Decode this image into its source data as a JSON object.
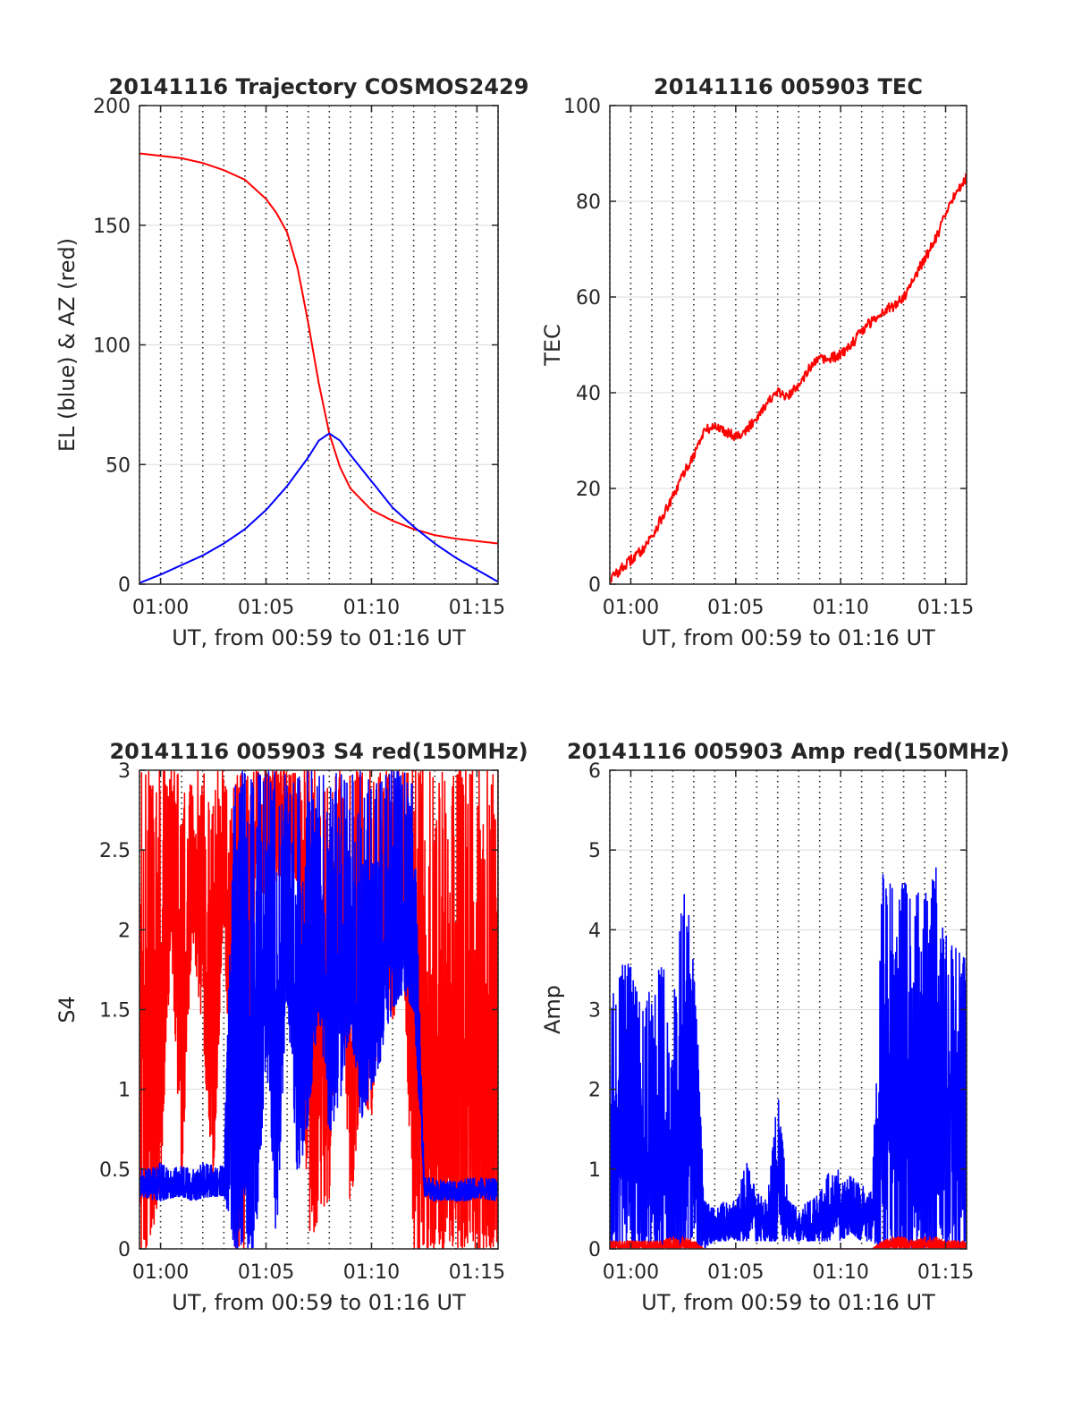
{
  "figure": {
    "background": "#ffffff",
    "colors": {
      "red": "#ff0000",
      "blue": "#0000ff",
      "axes": "#262626",
      "grid": "#262626"
    }
  },
  "chart_data": [
    {
      "type": "line",
      "title": "20141116 Trajectory COSMOS2429",
      "xlabel": "UT, from 00:59 to 01:16 UT",
      "ylabel": "EL (blue) & AZ (red)",
      "xlim": [
        "00:59",
        "01:16"
      ],
      "ylim": [
        0,
        200
      ],
      "xticks": [
        "01:00",
        "01:05",
        "01:10",
        "01:15"
      ],
      "yticks": [
        "0",
        "50",
        "100",
        "150",
        "200"
      ],
      "grid": "dotted vertical lines every 1 min, light horizontal lines",
      "series": [
        {
          "color": "#ff0000",
          "x": [
            "00:59",
            "01:00",
            "01:01",
            "01:02",
            "01:03",
            "01:04",
            "01:05",
            "01:05:30",
            "01:06",
            "01:06:30",
            "01:07",
            "01:07:30",
            "01:08",
            "01:08:30",
            "01:09",
            "01:10",
            "01:11",
            "01:12",
            "01:13",
            "01:14",
            "01:15",
            "01:16"
          ],
          "values": [
            180,
            179,
            178,
            176,
            173,
            169,
            161,
            155,
            147,
            132,
            109,
            84,
            63,
            49,
            40,
            31,
            26.5,
            23,
            20.5,
            19,
            18,
            17
          ]
        },
        {
          "color": "#0000ff",
          "x": [
            "00:59",
            "01:00",
            "01:01",
            "01:02",
            "01:03",
            "01:04",
            "01:05",
            "01:06",
            "01:07",
            "01:07:30",
            "01:08",
            "01:08:30",
            "01:09",
            "01:10",
            "01:11",
            "01:12",
            "01:13",
            "01:14",
            "01:15",
            "01:16"
          ],
          "values": [
            0.5,
            4,
            8,
            12,
            17,
            23,
            31,
            41,
            53,
            60,
            63,
            60,
            54,
            43,
            32,
            24,
            17,
            11,
            6,
            1
          ]
        }
      ]
    },
    {
      "type": "line",
      "title": "20141116 005903 TEC",
      "xlabel": "UT, from 00:59 to 01:16 UT",
      "ylabel": "TEC",
      "xlim": [
        "00:59",
        "01:16"
      ],
      "ylim": [
        0,
        100
      ],
      "xticks": [
        "01:00",
        "01:05",
        "01:10",
        "01:15"
      ],
      "yticks": [
        "0",
        "20",
        "40",
        "60",
        "80",
        "100"
      ],
      "grid": "dotted vertical lines every 1 min, light horizontal lines",
      "series": [
        {
          "color": "#ff0000",
          "x": [
            "00:59",
            "00:59:30",
            "01:00",
            "01:00:30",
            "01:01",
            "01:01:30",
            "01:02",
            "01:02:30",
            "01:03",
            "01:03:30",
            "01:04",
            "01:04:30",
            "01:05",
            "01:05:30",
            "01:06",
            "01:06:30",
            "01:07",
            "01:07:30",
            "01:08",
            "01:08:30",
            "01:09",
            "01:09:30",
            "01:10",
            "01:10:30",
            "01:11",
            "01:11:30",
            "01:12",
            "01:12:30",
            "01:13",
            "01:13:30",
            "01:14",
            "01:14:30",
            "01:15",
            "01:15:30",
            "01:16"
          ],
          "values": [
            1,
            3,
            5,
            7,
            10,
            14,
            18,
            23,
            27,
            32,
            33,
            32,
            31,
            32,
            35,
            38,
            40,
            39,
            42,
            45,
            47,
            47,
            48,
            50,
            53,
            55,
            57,
            58,
            60,
            64,
            68,
            72,
            77,
            82,
            85
          ]
        }
      ]
    },
    {
      "type": "line",
      "title": "20141116 005903 S4 red(150MHz)",
      "xlabel": "UT, from 00:59 to 01:16 UT",
      "ylabel": "S4",
      "xlim": [
        "00:59",
        "01:16"
      ],
      "ylim": [
        0,
        3
      ],
      "xticks": [
        "01:00",
        "01:05",
        "01:10",
        "01:15"
      ],
      "yticks": [
        "0",
        "0.5",
        "1",
        "1.5",
        "2",
        "2.5",
        "3"
      ],
      "grid": "dotted vertical lines every 1 min, light horizontal lines",
      "series": [
        {
          "color": "#ff0000",
          "description_free_values": true,
          "x": [
            "00:59",
            "00:59:30",
            "01:00",
            "01:00:30",
            "01:01",
            "01:01:30",
            "01:02",
            "01:02:30",
            "01:03",
            "01:03:30",
            "01:04",
            "01:04:30",
            "01:05",
            "01:05:30",
            "01:06",
            "01:06:30",
            "01:07",
            "01:07:30",
            "01:08",
            "01:08:30",
            "01:09",
            "01:09:30",
            "01:10",
            "01:10:30",
            "01:11",
            "01:11:30",
            "01:12",
            "01:12:30",
            "01:13",
            "01:13:30",
            "01:14",
            "01:14:30",
            "01:15",
            "01:15:30",
            "01:16"
          ],
          "min": [
            0,
            0,
            0.4,
            1.9,
            0.4,
            2.0,
            1.3,
            0.4,
            2.1,
            0,
            0,
            2.3,
            2.2,
            2.3,
            2.4,
            2.3,
            0,
            0.2,
            0.3,
            1.8,
            0.2,
            1.0,
            0.8,
            1.7,
            1.4,
            1.8,
            0,
            0,
            0,
            0,
            0,
            0,
            0,
            0,
            0
          ],
          "max": [
            3,
            3,
            3,
            3,
            3,
            3,
            3,
            3,
            3,
            3,
            3,
            3,
            3,
            3,
            3,
            3,
            3,
            3,
            3,
            3,
            3,
            3,
            3,
            3,
            3,
            3,
            3,
            3,
            3,
            3,
            3,
            3,
            3,
            3,
            3
          ]
        },
        {
          "color": "#0000ff",
          "x": [
            "00:59",
            "00:59:30",
            "01:00",
            "01:00:30",
            "01:01",
            "01:01:30",
            "01:02",
            "01:02:30",
            "01:03",
            "01:03:30",
            "01:04",
            "01:04:30",
            "01:05",
            "01:05:30",
            "01:06",
            "01:06:30",
            "01:07",
            "01:07:30",
            "01:08",
            "01:08:30",
            "01:09",
            "01:09:30",
            "01:10",
            "01:10:30",
            "01:11",
            "01:11:30",
            "01:12",
            "01:12:30",
            "01:13",
            "01:13:30",
            "01:14",
            "01:14:30",
            "01:15",
            "01:15:30",
            "01:16"
          ],
          "min": [
            0.33,
            0.31,
            0.3,
            0.32,
            0.33,
            0.3,
            0.32,
            0.33,
            0.33,
            0,
            0,
            0,
            1.2,
            0,
            1.6,
            0.4,
            0.8,
            1.5,
            0.7,
            0.9,
            1.4,
            0.8,
            1.0,
            1.2,
            1.5,
            1.6,
            1.5,
            0.33,
            0.3,
            0.31,
            0.3,
            0.3,
            0.32,
            0.31,
            0.3
          ],
          "max": [
            0.52,
            0.5,
            0.54,
            0.5,
            0.52,
            0.5,
            0.54,
            0.52,
            0.52,
            3,
            3,
            3,
            3,
            3,
            3,
            3,
            3,
            3,
            3,
            3,
            3,
            3,
            3,
            3,
            3,
            3,
            2.9,
            0.45,
            0.44,
            0.43,
            0.42,
            0.44,
            0.45,
            0.44,
            0.44
          ]
        }
      ]
    },
    {
      "type": "line",
      "title": "20141116 005903 Amp red(150MHz)",
      "xlabel": "UT, from 00:59 to 01:16 UT",
      "ylabel": "Amp",
      "xlim": [
        "00:59",
        "01:16"
      ],
      "ylim": [
        0,
        6
      ],
      "xticks": [
        "01:00",
        "01:05",
        "01:10",
        "01:15"
      ],
      "yticks": [
        "0",
        "1",
        "2",
        "3",
        "4",
        "5",
        "6"
      ],
      "grid": "dotted vertical lines every 1 min, light horizontal lines",
      "series": [
        {
          "color": "#0000ff",
          "x": [
            "00:59",
            "00:59:30",
            "01:00",
            "01:00:30",
            "01:01",
            "01:01:30",
            "01:02",
            "01:02:30",
            "01:03",
            "01:03:30",
            "01:04",
            "01:04:30",
            "01:05",
            "01:05:30",
            "01:06",
            "01:06:30",
            "01:07",
            "01:07:30",
            "01:08",
            "01:08:30",
            "01:09",
            "01:09:30",
            "01:10",
            "01:10:30",
            "01:11",
            "01:11:30",
            "01:12",
            "01:12:30",
            "01:13",
            "01:13:30",
            "01:14",
            "01:14:30",
            "01:15",
            "01:15:30",
            "01:16"
          ],
          "min": [
            0,
            0,
            0,
            0,
            0,
            0,
            0,
            0,
            0,
            0,
            0.1,
            0.1,
            0.1,
            0.1,
            0.1,
            0.1,
            0.1,
            0.1,
            0.1,
            0.1,
            0.1,
            0.1,
            0.1,
            0.2,
            0.1,
            0.1,
            0,
            0,
            0,
            0,
            0,
            0,
            0,
            0,
            0
          ],
          "max": [
            3.0,
            3.6,
            3.6,
            3.0,
            3.3,
            3.6,
            3.0,
            4.5,
            3.9,
            0.6,
            0.5,
            0.6,
            0.6,
            1.1,
            0.7,
            0.6,
            2.0,
            0.6,
            0.5,
            0.6,
            0.7,
            1.0,
            1.0,
            0.9,
            0.8,
            0.7,
            4.8,
            4.5,
            4.6,
            4.5,
            4.4,
            4.9,
            4.3,
            3.8,
            3.6
          ]
        },
        {
          "color": "#ff0000",
          "x": [
            "00:59",
            "00:59:30",
            "01:00",
            "01:00:30",
            "01:01",
            "01:01:30",
            "01:02",
            "01:02:30",
            "01:03",
            "01:03:30",
            "01:04",
            "01:04:30",
            "01:05",
            "01:05:30",
            "01:06",
            "01:06:30",
            "01:07",
            "01:07:30",
            "01:08",
            "01:08:30",
            "01:09",
            "01:09:30",
            "01:10",
            "01:10:30",
            "01:11",
            "01:11:30",
            "01:12",
            "01:12:30",
            "01:13",
            "01:13:30",
            "01:14",
            "01:14:30",
            "01:15",
            "01:15:30",
            "01:16"
          ],
          "min": [
            0,
            0,
            0,
            0,
            0,
            0,
            0,
            0,
            0,
            0,
            0,
            0,
            0,
            0,
            0,
            0,
            0,
            0,
            0,
            0,
            0,
            0,
            0,
            0,
            0,
            0,
            0,
            0,
            0,
            0,
            0,
            0,
            0,
            0,
            0
          ],
          "max": [
            0.1,
            0.1,
            0.1,
            0.1,
            0.1,
            0.1,
            0.15,
            0.15,
            0.1,
            0,
            0,
            0,
            0,
            0,
            0,
            0,
            0,
            0,
            0,
            0,
            0,
            0,
            0,
            0,
            0,
            0,
            0.1,
            0.15,
            0.15,
            0.1,
            0.15,
            0.15,
            0.1,
            0.1,
            0.1
          ]
        }
      ]
    }
  ]
}
